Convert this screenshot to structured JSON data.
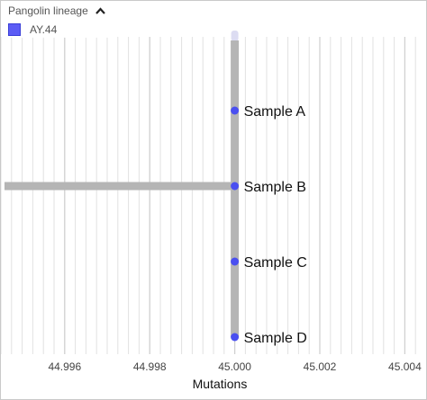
{
  "legend": {
    "title": "Pangolin lineage",
    "collapse_icon": "chevron-up-icon",
    "items": [
      {
        "label": "AY.44",
        "color": "#5c5cf5"
      }
    ]
  },
  "chart_data": {
    "type": "tree",
    "xlabel": "Mutations",
    "xlim": [
      44.9945,
      45.0045
    ],
    "x_ticks": [
      44.996,
      44.998,
      45.0,
      45.002,
      45.004
    ],
    "x_tick_labels": [
      "44.996",
      "44.998",
      "45.000",
      "45.002",
      "45.004"
    ],
    "branch_color": "#b5b5b5",
    "node_color": "#4a4ff0",
    "tips": [
      {
        "label": "Sample A",
        "x": 45.0
      },
      {
        "label": "Sample B",
        "x": 45.0
      },
      {
        "label": "Sample C",
        "x": 45.0
      },
      {
        "label": "Sample D",
        "x": 45.0
      }
    ]
  }
}
